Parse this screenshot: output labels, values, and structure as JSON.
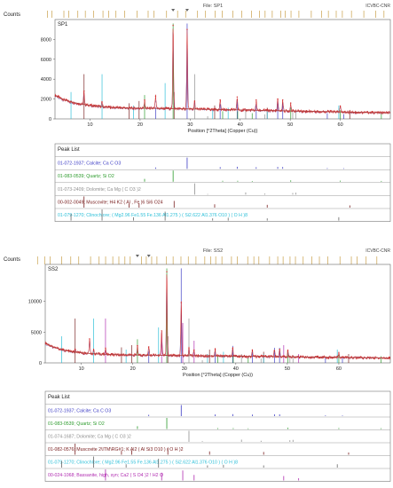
{
  "colors": {
    "pattern": "#d12a2a",
    "calculated": "#5f58b8",
    "ticks": "#c9a04a",
    "calcite": "#3b3bc4",
    "quartz": "#2a9a2a",
    "dolomite": "#8f8f8f",
    "muscovite": "#7a2020",
    "clinochlore": "#2bbfd8",
    "bassanite": "#b02bb0"
  },
  "chart_data": [
    {
      "type": "line",
      "title": "",
      "file_label": "File: SP1",
      "corner_label": "ICVBC-CNR",
      "sample_label": "SP1",
      "ylabel": "Counts",
      "xlabel": "Position [°2Theta] (Copper (Cu))",
      "xlim": [
        3,
        70
      ],
      "ylim": [
        0,
        10000
      ],
      "xticks": [
        10,
        20,
        30,
        40,
        50,
        60
      ],
      "yticks": [
        0,
        2000,
        4000,
        6000,
        8000
      ],
      "ytick_labels": [
        "0",
        "2000",
        "4000",
        "6000",
        "8000"
      ],
      "series": [
        {
          "x": [
            3,
            4,
            5,
            6,
            7,
            8,
            9,
            10,
            11,
            12,
            13,
            14,
            15,
            16,
            17,
            18,
            19,
            20,
            21,
            22,
            23,
            24,
            25,
            26,
            27,
            28,
            29,
            30,
            31,
            32,
            33,
            34,
            35,
            36,
            37,
            38,
            39,
            40,
            42,
            44,
            46,
            48,
            50,
            52,
            54,
            56,
            58,
            60,
            62,
            64,
            66,
            68,
            70
          ],
          "y": [
            2400,
            2100,
            1900,
            1750,
            1620,
            1520,
            1430,
            1360,
            1300,
            1250,
            1200,
            1170,
            1140,
            1120,
            1100,
            1090,
            1080,
            1070,
            1070,
            1060,
            1060,
            1050,
            1050,
            1040,
            1030,
            1020,
            1010,
            1000,
            990,
            980,
            970,
            960,
            950,
            940,
            930,
            920,
            910,
            900,
            880,
            860,
            840,
            820,
            800,
            780,
            760,
            740,
            720,
            700,
            680,
            660,
            640,
            620,
            600
          ]
        }
      ],
      "peaks": [
        {
          "x": 8.8,
          "y": 2800
        },
        {
          "x": 12.4,
          "y": 1700
        },
        {
          "x": 20.9,
          "y": 1900
        },
        {
          "x": 23.1,
          "y": 2300
        },
        {
          "x": 26.6,
          "y": 9400
        },
        {
          "x": 29.4,
          "y": 9000
        },
        {
          "x": 30.9,
          "y": 1800
        },
        {
          "x": 36.0,
          "y": 1900
        },
        {
          "x": 39.4,
          "y": 2200
        },
        {
          "x": 43.2,
          "y": 1900
        },
        {
          "x": 47.5,
          "y": 2000
        },
        {
          "x": 48.5,
          "y": 1900
        },
        {
          "x": 50.1,
          "y": 1600
        },
        {
          "x": 60.0,
          "y": 1300
        }
      ],
      "peak_list": {
        "header": "Peak List",
        "entries": [
          {
            "label": "01-072-1937; Calcite; Ca C O3",
            "phase": "calcite",
            "lines": [
              {
                "x": 29.4,
                "h": 1.0
              },
              {
                "x": 23.1,
                "h": 0.12
              },
              {
                "x": 36.0,
                "h": 0.15
              },
              {
                "x": 39.4,
                "h": 0.18
              },
              {
                "x": 43.2,
                "h": 0.14
              },
              {
                "x": 47.5,
                "h": 0.16
              },
              {
                "x": 48.5,
                "h": 0.16
              },
              {
                "x": 57.4,
                "h": 0.06
              },
              {
                "x": 60.7,
                "h": 0.05
              }
            ]
          },
          {
            "label": "01-083-0539; Quartz; Si O2",
            "phase": "quartz",
            "lines": [
              {
                "x": 26.6,
                "h": 1.0
              },
              {
                "x": 20.9,
                "h": 0.25
              },
              {
                "x": 36.5,
                "h": 0.08
              },
              {
                "x": 39.5,
                "h": 0.08
              },
              {
                "x": 42.4,
                "h": 0.06
              },
              {
                "x": 50.1,
                "h": 0.12
              },
              {
                "x": 60.0,
                "h": 0.09
              },
              {
                "x": 68.2,
                "h": 0.07
              }
            ]
          },
          {
            "label": "01-073-2409; Dolomite; Ca Mg ( C O3 )2",
            "phase": "dolomite",
            "lines": [
              {
                "x": 30.9,
                "h": 1.0
              },
              {
                "x": 33.5,
                "h": 0.06
              },
              {
                "x": 41.1,
                "h": 0.2
              },
              {
                "x": 44.9,
                "h": 0.1
              },
              {
                "x": 50.5,
                "h": 0.15
              },
              {
                "x": 51.1,
                "h": 0.18
              }
            ]
          },
          {
            "label": "00-002-0049; Muscovite; H4 K2 ( Al , Fe )6 Si6 O24",
            "phase": "muscovite",
            "lines": [
              {
                "x": 8.8,
                "h": 1.0
              },
              {
                "x": 17.8,
                "h": 0.35
              },
              {
                "x": 19.8,
                "h": 0.4
              },
              {
                "x": 26.8,
                "h": 0.6
              },
              {
                "x": 34.9,
                "h": 0.3
              },
              {
                "x": 45.4,
                "h": 0.25
              },
              {
                "x": 61.9,
                "h": 0.2
              }
            ]
          },
          {
            "label": "01-079-1270; Clinochlore; ( Mg2.96 Fe1.55 Fe.136 Al1.275 ) ( Si2.622 Al1.376 O10 ) ( O H )8",
            "phase": "clinochlore",
            "lines": [
              {
                "x": 6.2,
                "h": 0.6
              },
              {
                "x": 12.4,
                "h": 1.0
              },
              {
                "x": 18.7,
                "h": 0.3
              },
              {
                "x": 25.0,
                "h": 0.8
              },
              {
                "x": 34.5,
                "h": 0.2
              },
              {
                "x": 37.6,
                "h": 0.25
              },
              {
                "x": 45.4,
                "h": 0.2
              },
              {
                "x": 59.7,
                "h": 0.3
              }
            ]
          }
        ]
      }
    },
    {
      "type": "line",
      "title": "",
      "file_label": "File: SS2",
      "corner_label": "ICVBC-CNR",
      "sample_label": "SS2",
      "ylabel": "Counts",
      "xlabel": "Position [°2Theta] (Copper (Cu))",
      "xlim": [
        3,
        70
      ],
      "ylim": [
        0,
        16000
      ],
      "xticks": [
        10,
        20,
        30,
        40,
        50,
        60
      ],
      "yticks": [
        0,
        5000,
        10000
      ],
      "ytick_labels": [
        "0",
        "5000",
        "10000"
      ],
      "series": [
        {
          "x": [
            3,
            4,
            5,
            6,
            7,
            8,
            9,
            10,
            11,
            12,
            13,
            14,
            15,
            16,
            17,
            18,
            19,
            20,
            21,
            22,
            23,
            24,
            25,
            26,
            27,
            28,
            29,
            30,
            31,
            32,
            33,
            34,
            35,
            36,
            37,
            38,
            39,
            40,
            42,
            44,
            46,
            48,
            50,
            52,
            54,
            56,
            58,
            60,
            62,
            64,
            66,
            68,
            70
          ],
          "y": [
            3300,
            2800,
            2450,
            2200,
            2000,
            1850,
            1730,
            1640,
            1570,
            1510,
            1460,
            1420,
            1390,
            1360,
            1340,
            1320,
            1300,
            1290,
            1280,
            1270,
            1260,
            1250,
            1240,
            1230,
            1220,
            1210,
            1200,
            1190,
            1180,
            1170,
            1160,
            1150,
            1140,
            1130,
            1120,
            1110,
            1100,
            1090,
            1070,
            1050,
            1030,
            1010,
            990,
            970,
            950,
            930,
            910,
            890,
            870,
            850,
            830,
            810,
            790
          ]
        }
      ],
      "peaks": [
        {
          "x": 8.8,
          "y": 2200
        },
        {
          "x": 11.6,
          "y": 3900
        },
        {
          "x": 12.4,
          "y": 2100
        },
        {
          "x": 14.7,
          "y": 2400
        },
        {
          "x": 20.9,
          "y": 2800
        },
        {
          "x": 23.1,
          "y": 2600
        },
        {
          "x": 25.6,
          "y": 5200
        },
        {
          "x": 26.6,
          "y": 14800
        },
        {
          "x": 29.4,
          "y": 9800
        },
        {
          "x": 30.9,
          "y": 2400
        },
        {
          "x": 31.9,
          "y": 2100
        },
        {
          "x": 36.0,
          "y": 2200
        },
        {
          "x": 39.4,
          "y": 2400
        },
        {
          "x": 43.2,
          "y": 2100
        },
        {
          "x": 47.5,
          "y": 2000
        },
        {
          "x": 48.5,
          "y": 2200
        },
        {
          "x": 50.1,
          "y": 2000
        },
        {
          "x": 60.0,
          "y": 1600
        }
      ],
      "peak_list": {
        "header": "Peak List",
        "entries": [
          {
            "label": "01-072-1937; Calcite; Ca C O3",
            "phase": "calcite",
            "lines": [
              {
                "x": 29.4,
                "h": 1.0
              },
              {
                "x": 23.1,
                "h": 0.12
              },
              {
                "x": 36.0,
                "h": 0.15
              },
              {
                "x": 39.4,
                "h": 0.18
              },
              {
                "x": 43.2,
                "h": 0.14
              },
              {
                "x": 47.5,
                "h": 0.16
              },
              {
                "x": 48.5,
                "h": 0.16
              },
              {
                "x": 57.4,
                "h": 0.06
              },
              {
                "x": 60.7,
                "h": 0.05
              }
            ]
          },
          {
            "label": "01-083-0539; Quartz; Si O2",
            "phase": "quartz",
            "lines": [
              {
                "x": 26.6,
                "h": 1.0
              },
              {
                "x": 20.9,
                "h": 0.25
              },
              {
                "x": 36.5,
                "h": 0.08
              },
              {
                "x": 39.5,
                "h": 0.08
              },
              {
                "x": 42.4,
                "h": 0.06
              },
              {
                "x": 50.1,
                "h": 0.12
              },
              {
                "x": 60.0,
                "h": 0.09
              },
              {
                "x": 68.2,
                "h": 0.07
              }
            ]
          },
          {
            "label": "01-074-1687; Dolomite; Ca Mg ( C O3 )2",
            "phase": "dolomite",
            "lines": [
              {
                "x": 30.9,
                "h": 1.0
              },
              {
                "x": 33.5,
                "h": 0.06
              },
              {
                "x": 41.1,
                "h": 0.2
              },
              {
                "x": 44.9,
                "h": 0.1
              },
              {
                "x": 50.5,
                "h": 0.15
              },
              {
                "x": 51.1,
                "h": 0.18
              }
            ]
          },
          {
            "label": "01-082-0576; Muscovite 2\\ITM\\RG#1; K Al2 ( Al Si3 O10 ) ( O H )2",
            "phase": "muscovite",
            "lines": [
              {
                "x": 8.8,
                "h": 1.0
              },
              {
                "x": 17.8,
                "h": 0.35
              },
              {
                "x": 19.8,
                "h": 0.4
              },
              {
                "x": 26.8,
                "h": 0.6
              },
              {
                "x": 34.9,
                "h": 0.3
              },
              {
                "x": 45.4,
                "h": 0.25
              },
              {
                "x": 61.9,
                "h": 0.2
              }
            ]
          },
          {
            "label": "01-079-1270; Clinochlore; ( Mg2.96 Fe1.55 Fe.136 Al1.275 ) ( Si2.622 Al1.376 O10 ) ( O H )8",
            "phase": "clinochlore",
            "lines": [
              {
                "x": 6.2,
                "h": 0.6
              },
              {
                "x": 12.4,
                "h": 1.0
              },
              {
                "x": 18.7,
                "h": 0.3
              },
              {
                "x": 25.0,
                "h": 0.8
              },
              {
                "x": 34.5,
                "h": 0.2
              },
              {
                "x": 37.6,
                "h": 0.25
              },
              {
                "x": 45.4,
                "h": 0.2
              },
              {
                "x": 59.7,
                "h": 0.3
              }
            ]
          },
          {
            "label": "00-024-1068; Bassanite, high, syn; Ca2 ( S O4 )2 ! H2 O",
            "phase": "bassanite",
            "lines": [
              {
                "x": 14.7,
                "h": 1.0
              },
              {
                "x": 25.6,
                "h": 0.7
              },
              {
                "x": 29.7,
                "h": 0.9
              },
              {
                "x": 31.9,
                "h": 0.5
              },
              {
                "x": 49.3,
                "h": 0.4
              },
              {
                "x": 52.2,
                "h": 0.2
              }
            ]
          }
        ]
      }
    }
  ]
}
